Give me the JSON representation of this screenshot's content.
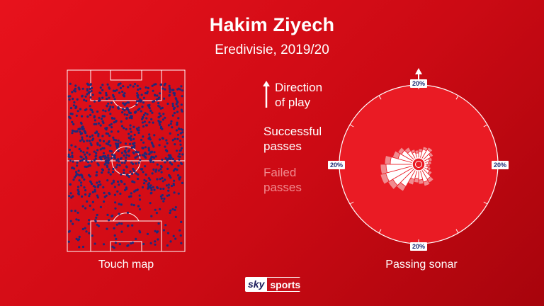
{
  "header": {
    "title": "Hakim Ziyech",
    "subtitle": "Eredivisie, 2019/20"
  },
  "touch_map": {
    "caption": "Touch map"
  },
  "legend": {
    "direction_line1": "Direction",
    "direction_line2": "of play",
    "successful_line1": "Successful",
    "successful_line2": "passes",
    "failed_line1": "Failed",
    "failed_line2": "passes"
  },
  "sonar": {
    "caption": "Passing sonar",
    "label_top": "20%",
    "label_left": "20%",
    "label_right": "20%",
    "label_bottom": "20%"
  },
  "branding": {
    "sky": "sky",
    "sports": "sports"
  },
  "colors": {
    "background": "#d40d16",
    "touch_dot": "#1f2a7a",
    "successful": "#ffffff",
    "failed": "#f08b8f"
  }
}
